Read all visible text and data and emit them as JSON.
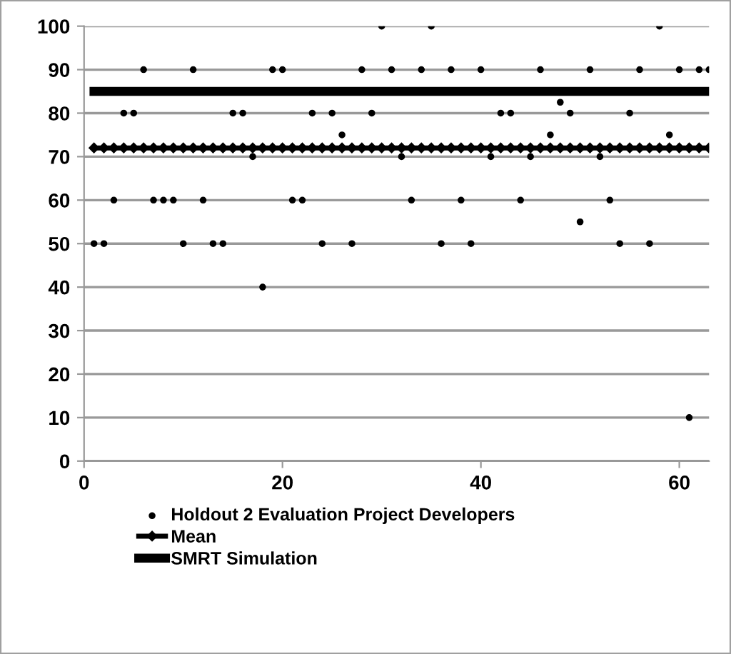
{
  "chart_data": {
    "type": "scatter",
    "xlim": [
      0,
      63
    ],
    "xticks": [
      0,
      20,
      40,
      60
    ],
    "ylim": [
      0,
      100
    ],
    "yticks": [
      0,
      10,
      20,
      30,
      40,
      50,
      60,
      70,
      80,
      90,
      100
    ],
    "grid": "y",
    "legend": "bottom",
    "series": [
      {
        "name": "Holdout 2 Evaluation Project Developers",
        "color": "#000000",
        "marker": "circle",
        "x": [
          1,
          2,
          3,
          4,
          5,
          6,
          7,
          8,
          9,
          10,
          11,
          12,
          13,
          14,
          15,
          16,
          17,
          18,
          19,
          20,
          21,
          22,
          23,
          24,
          25,
          26,
          27,
          28,
          29,
          30,
          31,
          32,
          33,
          34,
          35,
          36,
          37,
          38,
          39,
          40,
          41,
          42,
          43,
          44,
          45,
          46,
          47,
          48,
          49,
          50,
          51,
          52,
          53,
          54,
          55,
          56,
          57,
          58,
          59,
          60,
          61,
          62,
          63
        ],
        "values": [
          50,
          50,
          60,
          80,
          80,
          90,
          60,
          60,
          60,
          50,
          90,
          60,
          50,
          50,
          80,
          80,
          70,
          40,
          90,
          90,
          60,
          60,
          80,
          50,
          80,
          75,
          50,
          90,
          80,
          100,
          90,
          70,
          60,
          90,
          100,
          50,
          90,
          60,
          50,
          90,
          70,
          80,
          80,
          60,
          70,
          90,
          75,
          82.5,
          80,
          55,
          90,
          70,
          60,
          50,
          80,
          90,
          50,
          100,
          75,
          90,
          10,
          90,
          90
        ]
      },
      {
        "name": "Mean",
        "type": "line",
        "color": "#000000",
        "marker": "diamond",
        "line_style": "solid",
        "x": [
          1,
          2,
          3,
          4,
          5,
          6,
          7,
          8,
          9,
          10,
          11,
          12,
          13,
          14,
          15,
          16,
          17,
          18,
          19,
          20,
          21,
          22,
          23,
          24,
          25,
          26,
          27,
          28,
          29,
          30,
          31,
          32,
          33,
          34,
          35,
          36,
          37,
          38,
          39,
          40,
          41,
          42,
          43,
          44,
          45,
          46,
          47,
          48,
          49,
          50,
          51,
          52,
          53,
          54,
          55,
          56,
          57,
          58,
          59,
          60,
          61,
          62,
          63
        ],
        "values": [
          72,
          72,
          72,
          72,
          72,
          72,
          72,
          72,
          72,
          72,
          72,
          72,
          72,
          72,
          72,
          72,
          72,
          72,
          72,
          72,
          72,
          72,
          72,
          72,
          72,
          72,
          72,
          72,
          72,
          72,
          72,
          72,
          72,
          72,
          72,
          72,
          72,
          72,
          72,
          72,
          72,
          72,
          72,
          72,
          72,
          72,
          72,
          72,
          72,
          72,
          72,
          72,
          72,
          72,
          72,
          72,
          72,
          72,
          72,
          72,
          72,
          72,
          72
        ]
      },
      {
        "name": "SMRT Simulation",
        "type": "line",
        "color": "#000000",
        "marker": "none",
        "line_style": "solid",
        "x": [
          1,
          63
        ],
        "values": [
          85,
          85
        ]
      }
    ]
  }
}
